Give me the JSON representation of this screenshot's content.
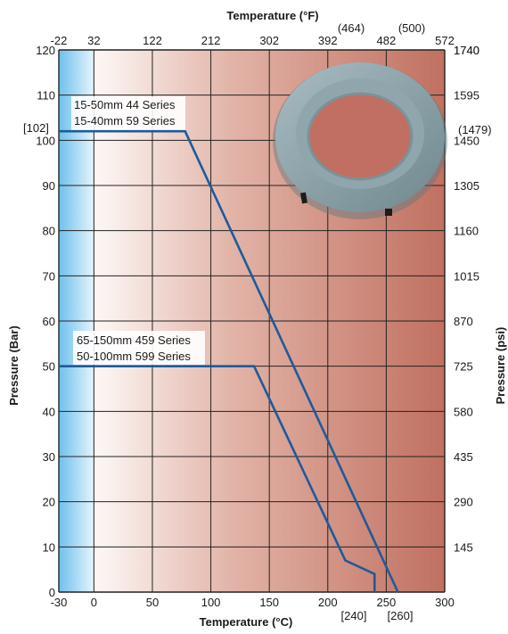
{
  "chart_data": {
    "type": "line",
    "xlabel": "Temperature (°C)",
    "ylabel": "Pressure (Bar)",
    "top_axis_label": "Temperature (°F)",
    "right_axis_label": "Pressure (psi)",
    "xlim": [
      -30,
      300
    ],
    "ylim": [
      0,
      120
    ],
    "x_ticks": [
      "-30",
      "0",
      "50",
      "100",
      "150",
      "200",
      "250",
      "300"
    ],
    "y_ticks": [
      "0",
      "10",
      "20",
      "30",
      "40",
      "50",
      "60",
      "70",
      "80",
      "90",
      "100",
      "110",
      "120"
    ],
    "top_ticks": [
      "-22",
      "32",
      "122",
      "212",
      "302",
      "392",
      "482",
      "572"
    ],
    "right_ticks": [
      "145",
      "290",
      "435",
      "580",
      "725",
      "870",
      "1015",
      "1160",
      "1305",
      "1450",
      "1595",
      "1740"
    ],
    "annotations": {
      "y_102": "[102]",
      "psi_1479": "(1479)",
      "f_464": "(464)",
      "f_500": "(500)",
      "c_240": "[240]",
      "c_260": "[260]"
    },
    "grid": true,
    "colors": {
      "line": "#1f5a9a",
      "cold_band": "#7cc8ee",
      "hot_fill": "#c07060",
      "grid": "#222222"
    },
    "series": [
      {
        "labels": [
          "15-50mm 44 Series",
          "15-40mm 59 Series"
        ],
        "x": [
          -30,
          78,
          260
        ],
        "y": [
          102,
          102,
          0
        ]
      },
      {
        "labels": [
          "65-150mm 459 Series",
          "50-100mm 599 Series"
        ],
        "x": [
          -30,
          137,
          215,
          240,
          240
        ],
        "y": [
          50,
          50,
          7,
          4,
          0
        ]
      }
    ],
    "image": {
      "name": "valve-seat-ring-photo"
    }
  }
}
